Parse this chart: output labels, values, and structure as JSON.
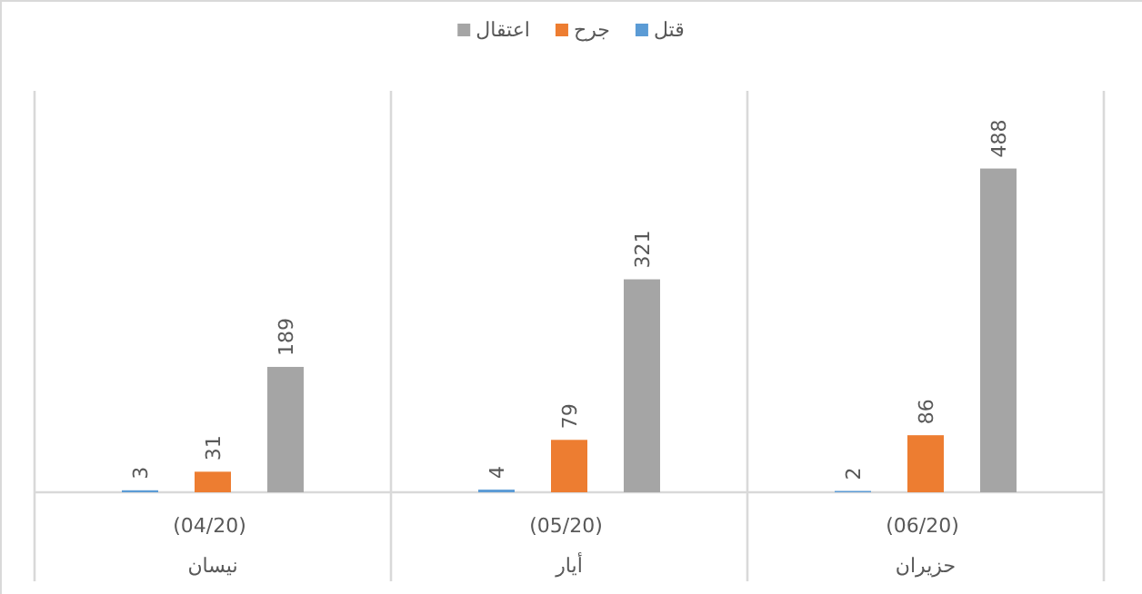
{
  "chart_data": {
    "type": "bar",
    "categories": [
      "(04/20) نيسان",
      "(05/20) أيار",
      "(06/20) حزيران"
    ],
    "series": [
      {
        "name": "قتل",
        "color": "#5b9bd5",
        "values": [
          3,
          4,
          2
        ]
      },
      {
        "name": "جرح",
        "color": "#ed7d31",
        "values": [
          31,
          79,
          86
        ]
      },
      {
        "name": "اعتقال",
        "color": "#a5a5a5",
        "values": [
          189,
          321,
          488
        ]
      }
    ],
    "data_labels": true,
    "legend": "top"
  }
}
